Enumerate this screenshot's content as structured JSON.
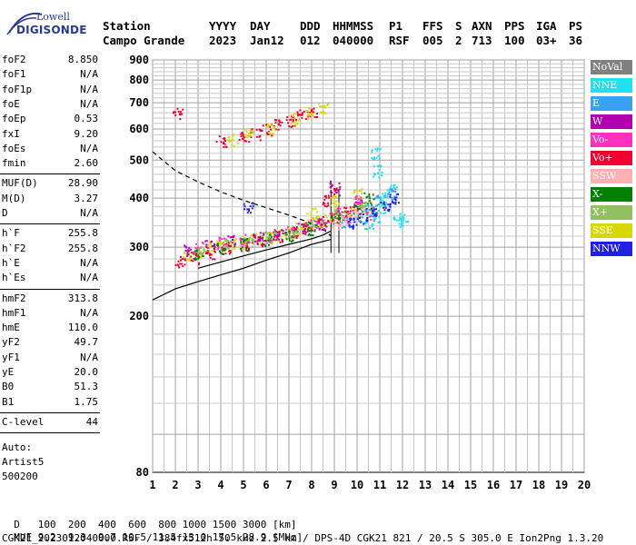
{
  "logo": {
    "line1": "Lowell",
    "line2": "DIGISONDE"
  },
  "header": {
    "row1": [
      "Station",
      "YYYY",
      "DAY",
      "DDD",
      "HHMMSS",
      "P1",
      "FFS",
      "S",
      "AXN",
      "PPS",
      "IGA",
      "PS"
    ],
    "row2": [
      "Campo Grande",
      "2023",
      "Jan12",
      "012",
      "040000",
      "RSF",
      "005",
      "2",
      "713",
      "100",
      "03+",
      "36"
    ]
  },
  "params": {
    "group1": [
      {
        "label": "foF2",
        "value": "8.850"
      },
      {
        "label": "foF1",
        "value": "N/A"
      },
      {
        "label": "foF1p",
        "value": "N/A"
      },
      {
        "label": "foE",
        "value": "N/A"
      },
      {
        "label": "foEp",
        "value": "0.53"
      },
      {
        "label": "fxI",
        "value": "9.20"
      },
      {
        "label": "foEs",
        "value": "N/A"
      },
      {
        "label": "fmin",
        "value": "2.60"
      }
    ],
    "group2": [
      {
        "label": "MUF(D)",
        "value": "28.90"
      },
      {
        "label": "M(D)",
        "value": "3.27"
      },
      {
        "label": "D",
        "value": "N/A"
      }
    ],
    "group3": [
      {
        "label": "h`F",
        "value": "255.8"
      },
      {
        "label": "h`F2",
        "value": "255.8"
      },
      {
        "label": "h`E",
        "value": "N/A"
      },
      {
        "label": "h`Es",
        "value": "N/A"
      }
    ],
    "group4": [
      {
        "label": "hmF2",
        "value": "313.8"
      },
      {
        "label": "hmF1",
        "value": "N/A"
      },
      {
        "label": "hmE",
        "value": "110.0"
      },
      {
        "label": "yF2",
        "value": "49.7"
      },
      {
        "label": "yF1",
        "value": "N/A"
      },
      {
        "label": "yE",
        "value": "20.0"
      },
      {
        "label": "B0",
        "value": "51.3"
      },
      {
        "label": "B1",
        "value": "1.75"
      }
    ],
    "group5": [
      {
        "label": "C-level",
        "value": "44"
      }
    ],
    "auto": [
      "Auto:",
      "Artist5",
      "500200"
    ]
  },
  "legend": [
    {
      "label": "NoVal",
      "color": "#808080"
    },
    {
      "label": "NNE",
      "color": "#22e0f0"
    },
    {
      "label": "E",
      "color": "#3aa0f0"
    },
    {
      "label": "W",
      "color": "#b000b0"
    },
    {
      "label": "Vo-",
      "color": "#ff30c0"
    },
    {
      "label": "Vo+",
      "color": "#f00030"
    },
    {
      "label": "SSW",
      "color": "#ffb0b0"
    },
    {
      "label": "X-",
      "color": "#008000"
    },
    {
      "label": "X+",
      "color": "#90c060"
    },
    {
      "label": "SSE",
      "color": "#d8d800"
    },
    {
      "label": "NNW",
      "color": "#2020e0"
    }
  ],
  "footer": {
    "row1_label": "D",
    "row1_values": "   100  200  400  600  800 1000 1500 3000 [km]",
    "row2_label": "MUF",
    "row2_values": " 9.2  9.3  9.7 10.5 11.5 13.0 17.5 28.9 [MHz]",
    "row3": "CGK21_2023012040000.RSF / 384fx512h 50 kHz 2.5 km / DPS-4D CGK21 821 / 20.5 S 305.0 E Ion2Png 1.3.20"
  },
  "chart_data": {
    "type": "scatter",
    "title": "",
    "xlabel": "",
    "ylabel": "",
    "xlim": [
      1,
      20
    ],
    "ylim": [
      80,
      900
    ],
    "x_ticks": [
      1,
      2,
      3,
      4,
      5,
      6,
      7,
      8,
      9,
      10,
      11,
      12,
      13,
      14,
      15,
      16,
      17,
      18,
      19,
      20
    ],
    "y_ticks": [
      80,
      200,
      300,
      400,
      500,
      600,
      700,
      800,
      900
    ],
    "y_scale": "log",
    "grid": true,
    "series": [
      {
        "name": "SSE",
        "color": "#d8d800",
        "points": [
          [
            2.5,
            285
          ],
          [
            3,
            292
          ],
          [
            3.5,
            300
          ],
          [
            4,
            303
          ],
          [
            4.5,
            306
          ],
          [
            5,
            310
          ],
          [
            5.5,
            315
          ],
          [
            6,
            318
          ],
          [
            6.5,
            322
          ],
          [
            7,
            328
          ],
          [
            7.5,
            335
          ],
          [
            8,
            342
          ],
          [
            8.5,
            352
          ],
          [
            9,
            360
          ],
          [
            9.5,
            370
          ],
          [
            10,
            376
          ],
          [
            10.5,
            380
          ],
          [
            8,
            370
          ],
          [
            9,
            395
          ],
          [
            10,
            410
          ]
        ]
      },
      {
        "name": "Vo+",
        "color": "#f00030",
        "points": [
          [
            2.2,
            275
          ],
          [
            2.8,
            282
          ],
          [
            3.5,
            290
          ],
          [
            4.2,
            298
          ],
          [
            5,
            305
          ],
          [
            5.8,
            313
          ],
          [
            6.5,
            320
          ],
          [
            7.2,
            330
          ],
          [
            7.8,
            338
          ],
          [
            8.4,
            350
          ],
          [
            9,
            360
          ],
          [
            9.6,
            370
          ],
          [
            8.5,
            395
          ],
          [
            9,
            420
          ],
          [
            2.1,
            660
          ]
        ]
      },
      {
        "name": "W",
        "color": "#b000b0",
        "points": [
          [
            2.5,
            295
          ],
          [
            3.5,
            305
          ],
          [
            4.5,
            312
          ],
          [
            5.5,
            318
          ],
          [
            6.5,
            325
          ],
          [
            7.5,
            335
          ],
          [
            8.5,
            345
          ],
          [
            9.5,
            360
          ],
          [
            10,
            385
          ],
          [
            9,
            430
          ]
        ]
      },
      {
        "name": "Vo-",
        "color": "#ff30c0",
        "points": [
          [
            3,
            300
          ],
          [
            4,
            308
          ],
          [
            5,
            314
          ],
          [
            6,
            320
          ],
          [
            7,
            330
          ],
          [
            8,
            345
          ],
          [
            9,
            370
          ],
          [
            10,
            395
          ],
          [
            10.5,
            365
          ]
        ]
      },
      {
        "name": "X-",
        "color": "#008000",
        "points": [
          [
            3,
            290
          ],
          [
            4,
            300
          ],
          [
            5,
            306
          ],
          [
            6,
            314
          ],
          [
            7,
            322
          ],
          [
            8,
            335
          ],
          [
            9,
            355
          ],
          [
            10,
            372
          ],
          [
            10.5,
            400
          ]
        ]
      },
      {
        "name": "X+",
        "color": "#90c060",
        "points": [
          [
            3.2,
            296
          ],
          [
            4.2,
            305
          ],
          [
            5.2,
            312
          ],
          [
            6.2,
            320
          ],
          [
            7.2,
            330
          ],
          [
            8.2,
            345
          ],
          [
            9.2,
            365
          ],
          [
            10.2,
            380
          ]
        ]
      },
      {
        "name": "NNE",
        "color": "#22e0f0",
        "points": [
          [
            10.5,
            345
          ],
          [
            10.8,
            360
          ],
          [
            11,
            380
          ],
          [
            11.2,
            400
          ],
          [
            11.5,
            420
          ],
          [
            10.9,
            470
          ],
          [
            10.8,
            520
          ],
          [
            11.8,
            350
          ],
          [
            12,
            355
          ]
        ]
      },
      {
        "name": "E",
        "color": "#3aa0f0",
        "points": [
          [
            9.5,
            350
          ],
          [
            10,
            360
          ],
          [
            10.5,
            375
          ],
          [
            11,
            395
          ],
          [
            11.5,
            410
          ]
        ]
      },
      {
        "name": "NNW",
        "color": "#2020e0",
        "points": [
          [
            9.8,
            345
          ],
          [
            10.2,
            358
          ],
          [
            10.6,
            368
          ],
          [
            11.2,
            385
          ],
          [
            11.6,
            400
          ],
          [
            5.2,
            380
          ]
        ]
      },
      {
        "name": "SSW",
        "color": "#ffb0b0",
        "points": [
          [
            9,
            340
          ],
          [
            9.5,
            355
          ],
          [
            10,
            365
          ]
        ]
      },
      {
        "name": "Vo+ (upper)",
        "color": "#f00030",
        "points": [
          [
            4,
            560
          ],
          [
            5,
            575
          ],
          [
            5.5,
            585
          ],
          [
            6,
            600
          ],
          [
            6.5,
            615
          ],
          [
            7,
            630
          ],
          [
            7.5,
            655
          ],
          [
            8,
            670
          ]
        ]
      },
      {
        "name": "SSE (upper)",
        "color": "#d8d800",
        "points": [
          [
            4.5,
            565
          ],
          [
            5.2,
            580
          ],
          [
            6.2,
            605
          ],
          [
            7.2,
            640
          ],
          [
            7.8,
            660
          ],
          [
            8.5,
            680
          ]
        ]
      }
    ],
    "profile_solid": [
      [
        1,
        220
      ],
      [
        2,
        235
      ],
      [
        3,
        245
      ],
      [
        4,
        255
      ],
      [
        5,
        265
      ],
      [
        6,
        278
      ],
      [
        7,
        290
      ],
      [
        8,
        305
      ],
      [
        8.85,
        313.8
      ]
    ],
    "profile_solid2": [
      [
        3,
        265
      ],
      [
        4,
        275
      ],
      [
        5,
        285
      ],
      [
        6,
        295
      ],
      [
        7,
        305
      ],
      [
        8,
        315
      ],
      [
        8.5,
        322
      ],
      [
        8.85,
        330
      ]
    ],
    "profile_dashed": [
      [
        1,
        525
      ],
      [
        2,
        470
      ],
      [
        3,
        440
      ],
      [
        4,
        415
      ],
      [
        5,
        395
      ],
      [
        6,
        378
      ],
      [
        7,
        362
      ],
      [
        8,
        345
      ],
      [
        8.6,
        330
      ],
      [
        8.85,
        320
      ]
    ],
    "vertical_lines": [
      8.85,
      9.2
    ]
  }
}
